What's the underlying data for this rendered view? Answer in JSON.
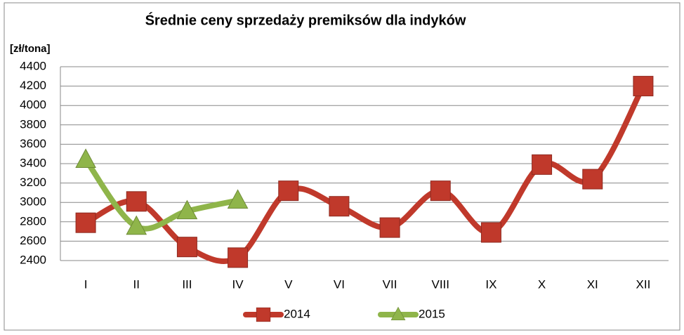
{
  "chart_data": {
    "type": "line",
    "title": "Średnie ceny sprzedaży premiksów dla indyków",
    "y_label": "[zł/tona]",
    "categories": [
      "I",
      "II",
      "III",
      "IV",
      "V",
      "VI",
      "VII",
      "VIII",
      "IX",
      "X",
      "XI",
      "XII"
    ],
    "series": [
      {
        "name": "2014",
        "color": "#c0392b",
        "marker": "square",
        "values": [
          2790,
          3010,
          2540,
          2430,
          3120,
          2960,
          2740,
          3120,
          2690,
          3390,
          3240,
          4200
        ]
      },
      {
        "name": "2015",
        "color": "#8fb54a",
        "marker": "triangle",
        "values": [
          3440,
          2750,
          2910,
          3020,
          null,
          null,
          null,
          null,
          null,
          null,
          null,
          null
        ]
      }
    ],
    "ylim": [
      2400,
      4400
    ],
    "yticks": [
      2400,
      2600,
      2800,
      3000,
      3200,
      3400,
      3600,
      3800,
      4000,
      4200,
      4400
    ],
    "grid": true,
    "legend": "bottom",
    "smooth": true
  }
}
